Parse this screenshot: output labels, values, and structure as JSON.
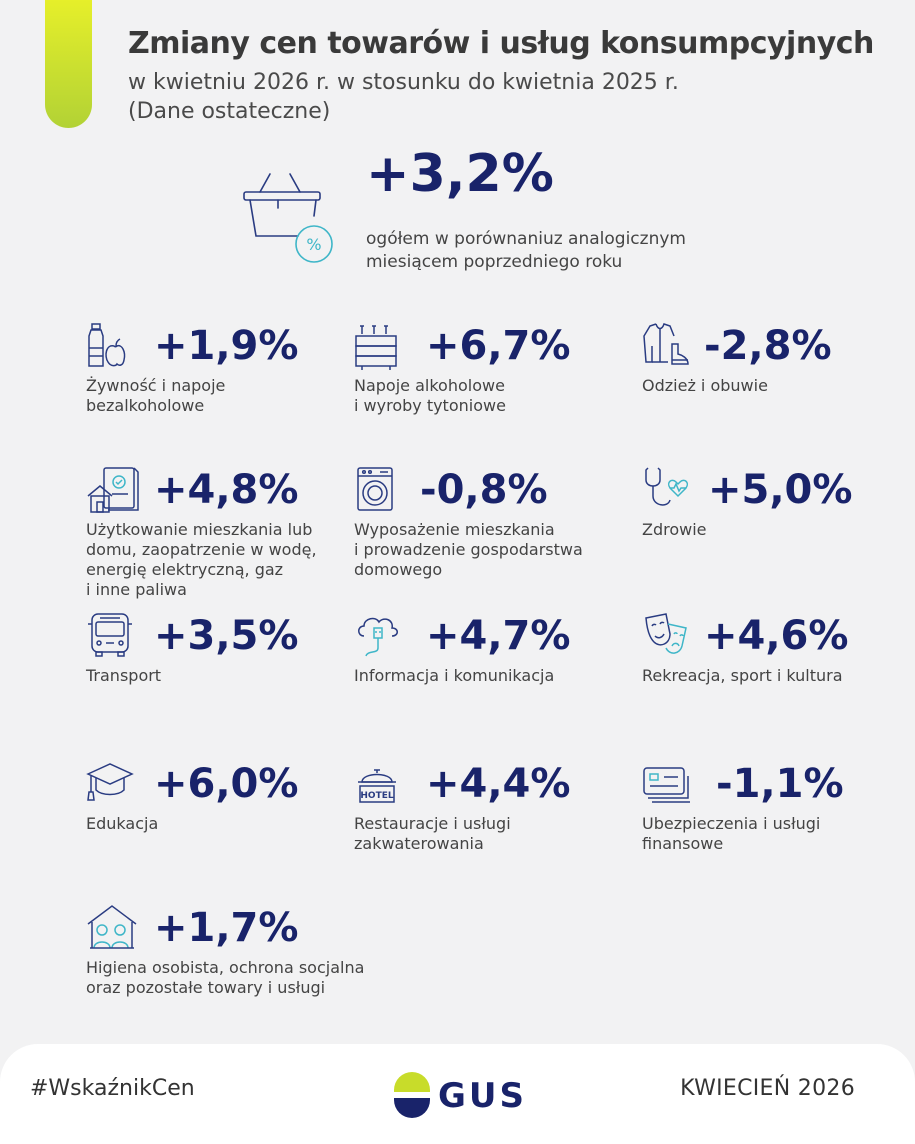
{
  "header": {
    "title": "Zmiany cen towarów i usług konsumpcyjnych",
    "subtitle_line1": "w kwietniu 2026 r. w stosunku do kwietnia 2025 r.",
    "subtitle_line2": "(Dane ostateczne)"
  },
  "main": {
    "value": "+3,2%",
    "desc_line1": "ogółem w porównaniuz analogicznym",
    "desc_line2": "miesiącem poprzedniego roku",
    "icon": "basket-percent-icon"
  },
  "items": [
    {
      "value": "+1,9%",
      "label1": "Żywność i napoje",
      "label2": "bezalkoholowe",
      "label3": "",
      "label4": "",
      "icon": "food-icon"
    },
    {
      "value": "+6,7%",
      "label1": "Napoje alkoholowe",
      "label2": "i wyroby tytoniowe",
      "label3": "",
      "label4": "",
      "icon": "bottles-icon"
    },
    {
      "value": "-2,8%",
      "label1": "Odzież i obuwie",
      "label2": "",
      "label3": "",
      "label4": "",
      "icon": "clothing-icon"
    },
    {
      "value": "+4,8%",
      "label1": "Użytkowanie mieszkania lub",
      "label2": "domu, zaopatrzenie w wodę,",
      "label3": "energię elektryczną, gaz",
      "label4": "i inne paliwa",
      "icon": "house-bill-icon"
    },
    {
      "value": "-0,8%",
      "label1": "Wyposażenie mieszkania",
      "label2": "i prowadzenie gospodarstwa",
      "label3": "domowego",
      "label4": "",
      "icon": "washing-machine-icon"
    },
    {
      "value": "+5,0%",
      "label1": "Zdrowie",
      "label2": "",
      "label3": "",
      "label4": "",
      "icon": "stethoscope-icon"
    },
    {
      "value": "+3,5%",
      "label1": "Transport",
      "label2": "",
      "label3": "",
      "label4": "",
      "icon": "bus-icon"
    },
    {
      "value": "+4,7%",
      "label1": "Informacja i komunikacja",
      "label2": "",
      "label3": "",
      "label4": "",
      "icon": "cloud-usb-icon"
    },
    {
      "value": "+4,6%",
      "label1": "Rekreacja, sport i kultura",
      "label2": "",
      "label3": "",
      "label4": "",
      "icon": "theater-masks-icon"
    },
    {
      "value": "+6,0%",
      "label1": "Edukacja",
      "label2": "",
      "label3": "",
      "label4": "",
      "icon": "graduation-cap-icon"
    },
    {
      "value": "+4,4%",
      "label1": "Restauracje i usługi",
      "label2": "zakwaterowania",
      "label3": "",
      "label4": "",
      "icon": "hotel-bell-icon"
    },
    {
      "value": "-1,1%",
      "label1": "Ubezpieczenia i usługi",
      "label2": "finansowe",
      "label3": "",
      "label4": "",
      "icon": "credit-card-icon"
    },
    {
      "value": "+1,7%",
      "label1": "Higiena osobista, ochrona socjalna",
      "label2": "oraz pozostałe towary i usługi",
      "label3": "",
      "label4": "",
      "icon": "care-home-icon"
    }
  ],
  "footer": {
    "hashtag": "#WskaźnikCen",
    "logo_text": "GUS",
    "date": "KWIECIEŃ 2026"
  },
  "colors": {
    "navy": "#19236a",
    "lime": "#c8dc2a",
    "icon_stroke": "#2a3c82",
    "icon_accent": "#3fb6c8"
  }
}
